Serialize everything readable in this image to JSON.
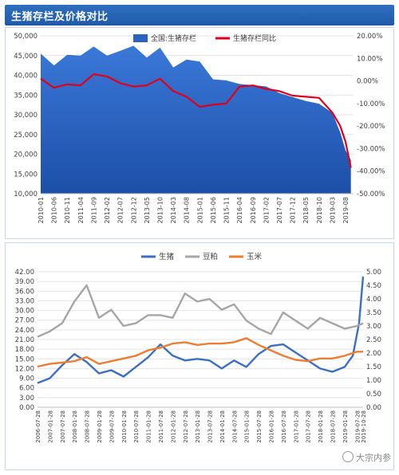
{
  "title": "生猪存栏及价格对比",
  "watermark": "大宗内参",
  "colors": {
    "title_bg": "#2466b8",
    "area": "#2a64c0",
    "red": "#e0001a",
    "pig": "#3b6fc4",
    "soy": "#a6a6a6",
    "corn": "#ed7d31"
  },
  "chart_data": [
    {
      "type": "area",
      "x_ticks": [
        "2010-01",
        "2010-06",
        "2010-11",
        "2011-04",
        "2011-09",
        "2012-02",
        "2012-07",
        "2012-12",
        "2013-05",
        "2013-10",
        "2014-03",
        "2014-08",
        "2015-01",
        "2015-06",
        "2015-11",
        "2016-04",
        "2016-09",
        "2017-02",
        "2017-07",
        "2017-12",
        "2018-05",
        "2018-10",
        "2019-03",
        "2019-08"
      ],
      "y_left_ticks": [
        "10,000",
        "15,000",
        "20,000",
        "25,000",
        "30,000",
        "35,000",
        "40,000",
        "45,000",
        "50,000"
      ],
      "y_right_ticks": [
        "-50.00%",
        "-40.00%",
        "-30.00%",
        "-20.00%",
        "-10.00%",
        "0.00%",
        "10.00%",
        "20.00%"
      ],
      "ylim_left": [
        10000,
        50000
      ],
      "ylim_right": [
        -50,
        20
      ],
      "legend": "top",
      "series": [
        {
          "name": "全国:生猪存栏",
          "axis": "left",
          "x": [
            "2010-01",
            "2010-06",
            "2010-11",
            "2011-04",
            "2011-09",
            "2012-02",
            "2012-07",
            "2012-12",
            "2013-05",
            "2013-10",
            "2014-03",
            "2014-08",
            "2015-01",
            "2015-06",
            "2015-11",
            "2016-04",
            "2016-09",
            "2017-02",
            "2017-07",
            "2017-12",
            "2018-05",
            "2018-10",
            "2019-03",
            "2019-06",
            "2019-08",
            "2019-10"
          ],
          "values": [
            45500,
            42500,
            45200,
            45000,
            47300,
            45000,
            46200,
            47500,
            44500,
            47000,
            42000,
            44000,
            43500,
            39000,
            38700,
            37800,
            37500,
            37200,
            35500,
            34500,
            33500,
            32800,
            30500,
            25500,
            21000,
            18500
          ]
        },
        {
          "name": "生猪存栏同比",
          "axis": "right",
          "x": [
            "2010-01",
            "2010-06",
            "2010-11",
            "2011-04",
            "2011-09",
            "2012-02",
            "2012-07",
            "2012-12",
            "2013-05",
            "2013-10",
            "2014-03",
            "2014-08",
            "2015-01",
            "2015-06",
            "2015-11",
            "2016-04",
            "2016-09",
            "2017-02",
            "2017-07",
            "2017-12",
            "2018-05",
            "2018-10",
            "2019-03",
            "2019-06",
            "2019-08",
            "2019-10"
          ],
          "values": [
            1.0,
            -3.0,
            -1.5,
            -2.0,
            3.0,
            2.0,
            -1.0,
            -2.5,
            -2.0,
            1.0,
            -4.5,
            -7.0,
            -11.5,
            -10.5,
            -10.0,
            -2.5,
            -2.0,
            -3.5,
            -4.5,
            -6.5,
            -7.0,
            -7.5,
            -14.0,
            -20.0,
            -27.0,
            -38.5
          ]
        }
      ]
    },
    {
      "type": "line",
      "x_ticks": [
        "2006-07-28",
        "2007-01-28",
        "2007-07-28",
        "2008-01-28",
        "2008-07-28",
        "2009-01-28",
        "2009-07-28",
        "2010-01-28",
        "2010-07-28",
        "2011-01-28",
        "2011-07-28",
        "2012-01-28",
        "2012-07-28",
        "2013-01-28",
        "2013-07-28",
        "2014-01-28",
        "2014-07-28",
        "2015-01-28",
        "2015-07-28",
        "2016-01-28",
        "2016-07-28",
        "2017-01-28",
        "2017-07-28",
        "2018-01-28",
        "2018-07-28",
        "2019-01-28",
        "2019-07-28",
        "2019-10-28"
      ],
      "y_left_ticks": [
        "0.00",
        "3.00",
        "6.00",
        "9.00",
        "12.00",
        "15.00",
        "18.00",
        "21.00",
        "24.00",
        "27.00",
        "30.00",
        "33.00",
        "36.00",
        "39.00",
        "42.00"
      ],
      "y_right_ticks": [
        "0.00",
        "0.50",
        "1.00",
        "1.50",
        "2.00",
        "2.50",
        "3.00",
        "3.50",
        "4.00",
        "4.50",
        "5.00"
      ],
      "ylim_left": [
        0,
        42
      ],
      "ylim_right": [
        0,
        5
      ],
      "legend": "top",
      "series": [
        {
          "name": "生猪",
          "axis": "left",
          "x": [
            "2006-07",
            "2007-01",
            "2007-07",
            "2008-01",
            "2008-07",
            "2009-01",
            "2009-07",
            "2010-01",
            "2010-07",
            "2011-01",
            "2011-07",
            "2012-01",
            "2012-07",
            "2013-01",
            "2013-07",
            "2014-01",
            "2014-07",
            "2015-01",
            "2015-07",
            "2016-01",
            "2016-07",
            "2017-01",
            "2017-07",
            "2018-01",
            "2018-07",
            "2019-01",
            "2019-05",
            "2019-08",
            "2019-10"
          ],
          "values": [
            7.5,
            9.0,
            13.0,
            16.5,
            14.0,
            10.5,
            11.5,
            9.5,
            12.5,
            15.5,
            19.5,
            16.0,
            14.5,
            15.0,
            14.5,
            12.0,
            14.5,
            12.5,
            16.5,
            19.0,
            19.5,
            17.0,
            14.5,
            12.0,
            11.0,
            12.5,
            16.0,
            26.0,
            40.5
          ]
        },
        {
          "name": "豆粕",
          "axis": "right",
          "x": [
            "2006-07",
            "2007-01",
            "2007-07",
            "2008-01",
            "2008-07",
            "2009-01",
            "2009-07",
            "2010-01",
            "2010-07",
            "2011-01",
            "2011-07",
            "2012-01",
            "2012-07",
            "2013-01",
            "2013-07",
            "2014-01",
            "2014-07",
            "2015-01",
            "2015-07",
            "2016-01",
            "2016-07",
            "2017-01",
            "2017-07",
            "2018-01",
            "2018-07",
            "2019-01",
            "2019-07",
            "2019-10"
          ],
          "values": [
            2.6,
            2.8,
            3.1,
            3.9,
            4.5,
            3.3,
            3.6,
            3.0,
            3.1,
            3.4,
            3.4,
            3.3,
            4.2,
            3.9,
            4.0,
            3.6,
            3.8,
            3.2,
            2.9,
            2.7,
            3.5,
            3.2,
            2.9,
            3.3,
            3.1,
            2.9,
            3.0,
            3.1
          ]
        },
        {
          "name": "玉米",
          "axis": "right",
          "x": [
            "2006-07",
            "2007-01",
            "2007-07",
            "2008-01",
            "2008-07",
            "2009-01",
            "2009-07",
            "2010-01",
            "2010-07",
            "2011-01",
            "2011-07",
            "2012-01",
            "2012-07",
            "2013-01",
            "2013-07",
            "2014-01",
            "2014-07",
            "2015-01",
            "2015-07",
            "2016-01",
            "2016-07",
            "2017-01",
            "2017-07",
            "2018-01",
            "2018-07",
            "2019-01",
            "2019-07",
            "2019-10"
          ],
          "values": [
            1.5,
            1.6,
            1.65,
            1.7,
            1.85,
            1.6,
            1.7,
            1.8,
            1.9,
            2.1,
            2.2,
            2.35,
            2.4,
            2.3,
            2.35,
            2.35,
            2.4,
            2.55,
            2.3,
            2.1,
            1.9,
            1.75,
            1.7,
            1.8,
            1.8,
            1.9,
            2.05,
            2.05
          ]
        }
      ]
    }
  ]
}
